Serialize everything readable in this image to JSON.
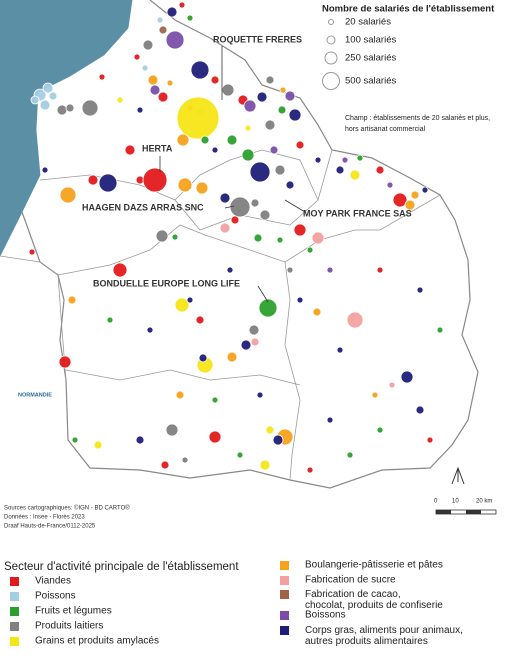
{
  "size_legend": {
    "title": "Nombre de salariés de l'établissement",
    "items": [
      "20 salariés",
      "100 salariés",
      "250 salariés",
      "500 salariés"
    ]
  },
  "note": [
    "Champ : établissements de 20 salariés et plus,",
    "hors artisanat commercial"
  ],
  "companies": [
    "ROQUETTE FRERES",
    "HERTA",
    "HAAGEN DAZS ARRAS SNC",
    "MOY PARK FRANCE SAS",
    "BONDUELLE EUROPE LONG LIFE"
  ],
  "neighbor": "NORMANDIE",
  "sources": [
    "Sources cartographiques: ©IGN - BD CARTO®",
    "Données : Insee - Florès 2023",
    "Draaf Hauts-de-France/0112-2025"
  ],
  "scale": [
    "0",
    "10",
    "20 km"
  ],
  "sector_legend": {
    "title": "Secteur d'activité principale de l'établissement",
    "items": [
      {
        "label": "Viandes",
        "color": "#e31a1c"
      },
      {
        "label": "Poissons",
        "color": "#a6cee3"
      },
      {
        "label": "Fruits et légumes",
        "color": "#2ca02c"
      },
      {
        "label": "Produits laitiers",
        "color": "#808080"
      },
      {
        "label": "Grains et produits amylacés",
        "color": "#f5e616"
      },
      {
        "label": "Boulangerie-pâtisserie et pâtes",
        "color": "#f7a21b"
      },
      {
        "label": "Fabrication de sucre",
        "color": "#f4a0a0"
      },
      {
        "label": "Fabrication de cacao, chocolat, produits de confiserie",
        "color": "#a0634a"
      },
      {
        "label": "Boissons",
        "color": "#7b4fa8"
      },
      {
        "label": "Corps gras, aliments pour animaux, autres produits alimentaires",
        "color": "#1f1f7a"
      }
    ]
  }
}
